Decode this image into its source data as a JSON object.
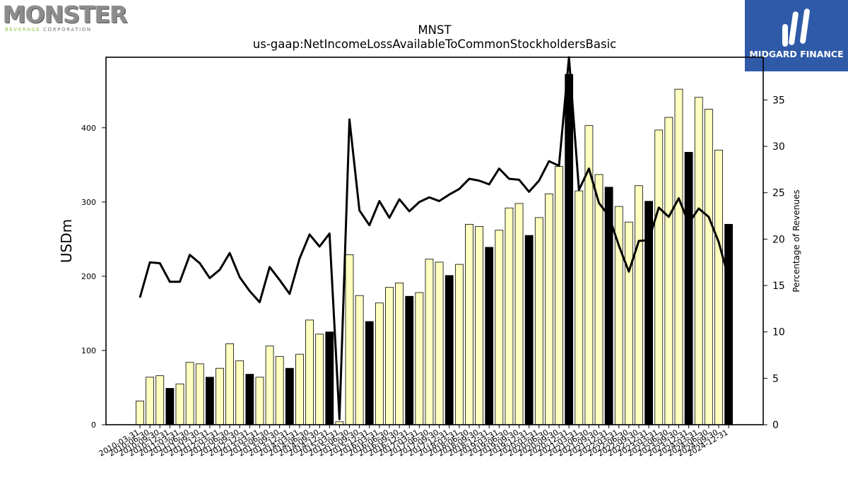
{
  "logos": {
    "left_text": "MONSTER",
    "left_sub_accent": "BEVERAGE",
    "left_sub_rest": "CORPORATION",
    "right_text": "MIDGARD FINANCE"
  },
  "colors": {
    "bar_fill": "#ffffc0",
    "bar_highlight": "#000000",
    "line": "#000000",
    "logo_right_bg": "#2f5aa8",
    "logo_left_accent": "#8cc63f"
  },
  "chart_data": {
    "type": "bar",
    "title": "MNST",
    "subtitle": "us-gaap:NetIncomeLossAvailableToCommonStockholdersBasic",
    "ylabel": "USDm",
    "y2label": "Percentage of Revenues",
    "ylim": [
      0,
      495
    ],
    "y2lim": [
      0,
      39.6
    ],
    "yticks": [
      0,
      100,
      200,
      300,
      400
    ],
    "y2ticks": [
      0,
      5,
      10,
      15,
      20,
      25,
      30,
      35
    ],
    "grid": false,
    "categories": [
      "2010-03-31",
      "2010-06-30",
      "2010-09-30",
      "2010-12-31",
      "2011-03-31",
      "2011-06-30",
      "2011-09-30",
      "2011-12-31",
      "2012-03-31",
      "2012-06-30",
      "2012-09-30",
      "2012-12-31",
      "2013-03-31",
      "2013-06-30",
      "2013-09-30",
      "2013-12-31",
      "2014-03-31",
      "2014-06-30",
      "2014-09-30",
      "2014-12-31",
      "2015-03-31",
      "2015-06-30",
      "2015-09-30",
      "2015-12-31",
      "2016-03-31",
      "2016-06-30",
      "2016-09-30",
      "2016-12-31",
      "2017-03-31",
      "2017-06-30",
      "2017-09-30",
      "2017-12-31",
      "2018-03-31",
      "2018-06-30",
      "2018-09-30",
      "2018-12-31",
      "2019-03-31",
      "2019-06-30",
      "2019-09-30",
      "2019-12-31",
      "2020-03-31",
      "2020-06-30",
      "2020-09-30",
      "2020-12-31",
      "2021-03-31",
      "2021-06-30",
      "2021-09-30",
      "2021-12-31",
      "2022-03-31",
      "2022-06-30",
      "2022-09-30",
      "2022-12-31",
      "2023-03-31",
      "2023-06-30",
      "2023-09-30",
      "2023-12-31",
      "2024-03-31",
      "2024-06-30",
      "2024-09-30",
      "2024-12-31"
    ],
    "tick_labels": [
      "2010-03-31",
      "2010-06-30",
      "2010-09-30",
      "2010-12-31",
      "2011-03-31",
      "2011-06-30",
      "2011-09-30",
      "2011-12-31",
      "2012-03-31",
      "2012-06-30",
      "2012-09-30",
      "2012-12-31",
      "2013-03-31",
      "2013-06-30",
      "2013-09-30",
      "2013-12-31",
      "2014-03-31",
      "2014-06-30",
      "2014-09-30",
      "2014-12-31",
      "2015-03-31",
      "2015-06-30",
      "2015-09-30",
      "2015-12-31",
      "2016-03-31",
      "2016-06-30",
      "2016-09-30",
      "2016-12-31",
      "2017-03-31",
      "2017-06-30",
      "2017-09-30",
      "2017-12-31",
      "2018-03-31",
      "2018-06-30",
      "2018-09-30",
      "2018-12-31",
      "2019-03-31",
      "2019-06-30",
      "2019-09-30",
      "2019-12-31",
      "2020-03-31",
      "2020-06-30",
      "2020-09-30",
      "2020-12-31",
      "2021-03-31",
      "2021-06-30",
      "2021-09-30",
      "2021-12-31",
      "2022-03-31",
      "2022-06-30",
      "2022-09-30",
      "2022-12-31",
      "2023-03-31",
      "2023-06-30",
      "2023-09-30",
      "2023-12-31",
      "2024-03-31",
      "2024-06-30",
      "2024-09-30",
      "2024-12-31"
    ],
    "series": [
      {
        "type": "bar",
        "axis": "left",
        "values": [
          32,
          64,
          66,
          49,
          55,
          84,
          82,
          64,
          76,
          109,
          86,
          68,
          64,
          106,
          92,
          76,
          95,
          141,
          122,
          125,
          4,
          229,
          174,
          139,
          164,
          185,
          191,
          173,
          178,
          223,
          219,
          201,
          216,
          270,
          267,
          239,
          262,
          292,
          298,
          255,
          279,
          311,
          348,
          472,
          315,
          403,
          337,
          320,
          294,
          273,
          322,
          301,
          397,
          414,
          452,
          367,
          441,
          425,
          370,
          270
        ],
        "highlight": [
          false,
          false,
          false,
          true,
          false,
          false,
          false,
          true,
          false,
          false,
          false,
          true,
          false,
          false,
          false,
          true,
          false,
          false,
          false,
          true,
          false,
          false,
          false,
          true,
          false,
          false,
          false,
          true,
          false,
          false,
          false,
          true,
          false,
          false,
          false,
          true,
          false,
          false,
          false,
          true,
          false,
          false,
          false,
          true,
          false,
          false,
          false,
          true,
          false,
          false,
          false,
          true,
          false,
          false,
          false,
          true,
          false,
          false,
          false,
          true
        ]
      },
      {
        "type": "line",
        "axis": "right",
        "values": [
          13.7,
          17.5,
          17.4,
          15.4,
          15.4,
          18.3,
          17.4,
          15.8,
          16.7,
          18.5,
          15.9,
          14.4,
          13.2,
          17.0,
          15.6,
          14.1,
          17.9,
          20.5,
          19.2,
          20.6,
          0.6,
          32.9,
          23.1,
          21.5,
          24.1,
          22.3,
          24.3,
          23.0,
          24.0,
          24.5,
          24.1,
          24.8,
          25.4,
          26.5,
          26.3,
          25.9,
          27.6,
          26.5,
          26.4,
          25.1,
          26.3,
          28.4,
          27.9,
          39.6,
          25.3,
          27.6,
          23.9,
          22.5,
          19.3,
          16.5,
          19.8,
          19.9,
          23.4,
          22.4,
          24.4,
          21.7,
          23.3,
          22.4,
          19.7,
          15.8
        ]
      }
    ]
  }
}
